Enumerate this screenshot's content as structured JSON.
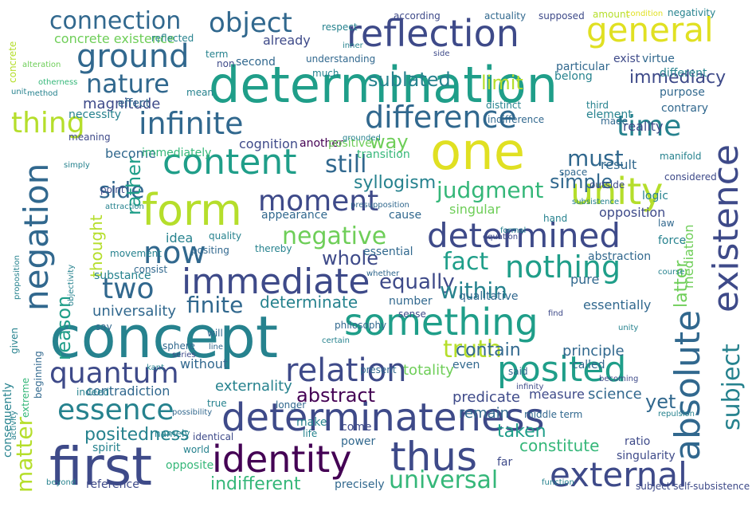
{
  "palette": {
    "dark_purple": "#440154",
    "indigo": "#3e4a89",
    "slate_blue": "#31688e",
    "teal": "#26828e",
    "green_teal": "#1f9e89",
    "green": "#35b779",
    "light_green": "#6ece58",
    "lime": "#b5de2b",
    "yellow": "#e0e022"
  },
  "words": [
    "determination",
    "concept",
    "one",
    "first",
    "determinateness",
    "identity",
    "reflection",
    "thus",
    "form",
    "something",
    "unity",
    "immediate",
    "existence",
    "posited",
    "absolute",
    "negation",
    "general",
    "determined",
    "ground",
    "quantum",
    "relation",
    "external",
    "content",
    "moment",
    "difference",
    "infinite",
    "connection",
    "object",
    "time",
    "thing",
    "nothing",
    "essence",
    "subject",
    "now",
    "two",
    "judgment",
    "still",
    "nature",
    "universal",
    "truth",
    "negative",
    "fact",
    "finite",
    "must",
    "equally",
    "within",
    "reason",
    "matter",
    "side",
    "rather",
    "immediacy",
    "sublated",
    "positedness",
    "taken",
    "thought",
    "simple",
    "way",
    "indifferent",
    "constitute",
    "abstract",
    "syllogism",
    "contain",
    "determinate",
    "latter",
    "yet",
    "whole",
    "limit",
    "already",
    "universality",
    "magnitude",
    "concrete existence",
    "externality",
    "totality",
    "principle",
    "science",
    "predicate",
    "remain",
    "opposition",
    "essentially",
    "reality",
    "purpose",
    "become",
    "immediately",
    "cognition",
    "another",
    "positive",
    "particular",
    "mediation",
    "singular",
    "appearance",
    "cause",
    "result",
    "transition",
    "qualitative",
    "measure",
    "contradiction",
    "pure",
    "abstraction",
    "logic",
    "element",
    "different",
    "contrary",
    "belong",
    "virtue",
    "exist",
    "amount",
    "condition",
    "negativity",
    "supposed",
    "actuality",
    "according",
    "respect",
    "reflected",
    "mean",
    "term",
    "second",
    "non",
    "understanding",
    "much",
    "alteration",
    "otherness",
    "concrete",
    "unit",
    "method",
    "necessity",
    "effect",
    "meaning",
    "movement",
    "idea",
    "quality",
    "positing",
    "substance",
    "objectivity",
    "thereby",
    "essential",
    "proposition",
    "given",
    "consequently",
    "namely",
    "possibility",
    "identical",
    "make",
    "power",
    "middle term",
    "ratio",
    "singularity",
    "far",
    "spirit",
    "indeed",
    "true",
    "longer",
    "come",
    "even",
    "said",
    "called",
    "beginning",
    "extreme",
    "beyond",
    "space",
    "outside",
    "third",
    "distinct",
    "made",
    "hand",
    "force",
    "law",
    "manifold",
    "considered",
    "infinity",
    "number",
    "sense",
    "philosophy",
    "present",
    "point",
    "precisely",
    "opposite",
    "reference",
    "activity",
    "world",
    "will",
    "life",
    "subject self-subsistence",
    "without",
    "consist",
    "say",
    "sphere",
    "series",
    "kant",
    "line",
    "certain",
    "indifference",
    "simply",
    "presupposition",
    "grounded",
    "inner",
    "side",
    "find",
    "whether",
    "unity",
    "subsistence",
    "function",
    "formal",
    "equation",
    "becoming",
    "course",
    "repulsion",
    "attraction"
  ]
}
